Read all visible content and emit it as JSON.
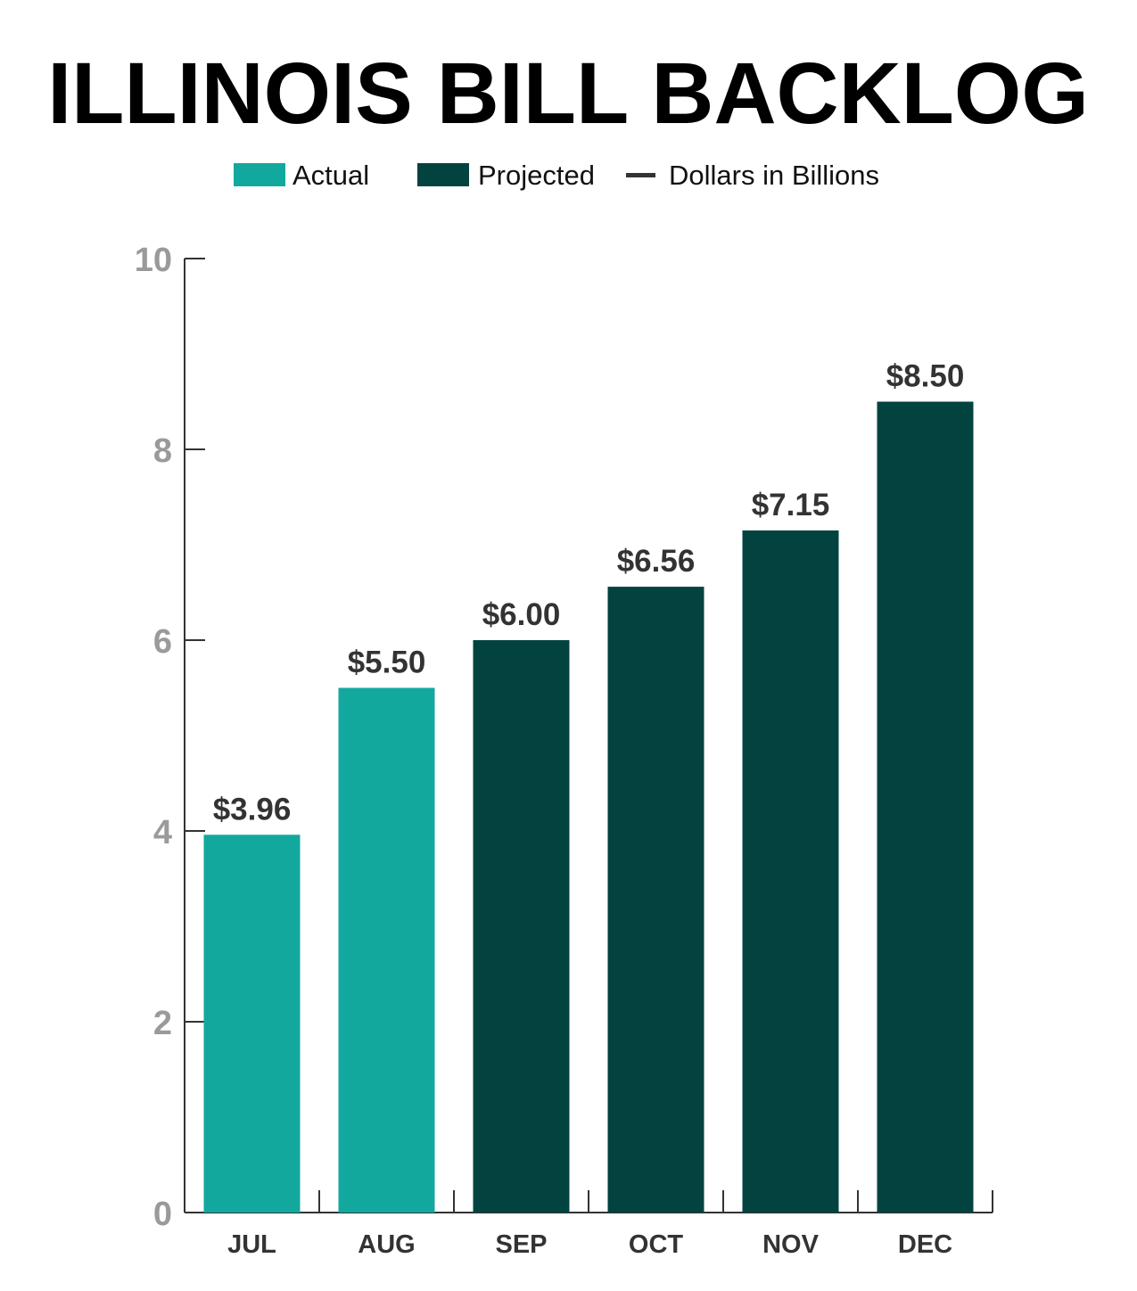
{
  "chart_data": {
    "type": "bar",
    "title": "ILLINOIS BILL BACKLOG",
    "categories": [
      "JUL",
      "AUG",
      "SEP",
      "OCT",
      "NOV",
      "DEC"
    ],
    "values": [
      3.96,
      5.5,
      6.0,
      6.56,
      7.15,
      8.5
    ],
    "data_labels": [
      "$3.96",
      "$5.50",
      "$6.00",
      "$6.56",
      "$7.15",
      "$8.50"
    ],
    "bar_status": [
      "Actual",
      "Actual",
      "Projected",
      "Projected",
      "Projected",
      "Projected"
    ],
    "legend": [
      {
        "label": "Actual",
        "marker": "swatch",
        "color": "#13a89e"
      },
      {
        "label": "Projected",
        "marker": "swatch",
        "color": "#024340"
      },
      {
        "label": "Dollars in Billions",
        "marker": "line",
        "color": "#333333"
      }
    ],
    "legend_position": "top-center",
    "ylim": [
      0,
      10
    ],
    "yticks": [
      0,
      2,
      4,
      6,
      8,
      10
    ],
    "grid": false,
    "colors": {
      "Actual": "#13a89e",
      "Projected": "#024340"
    }
  }
}
